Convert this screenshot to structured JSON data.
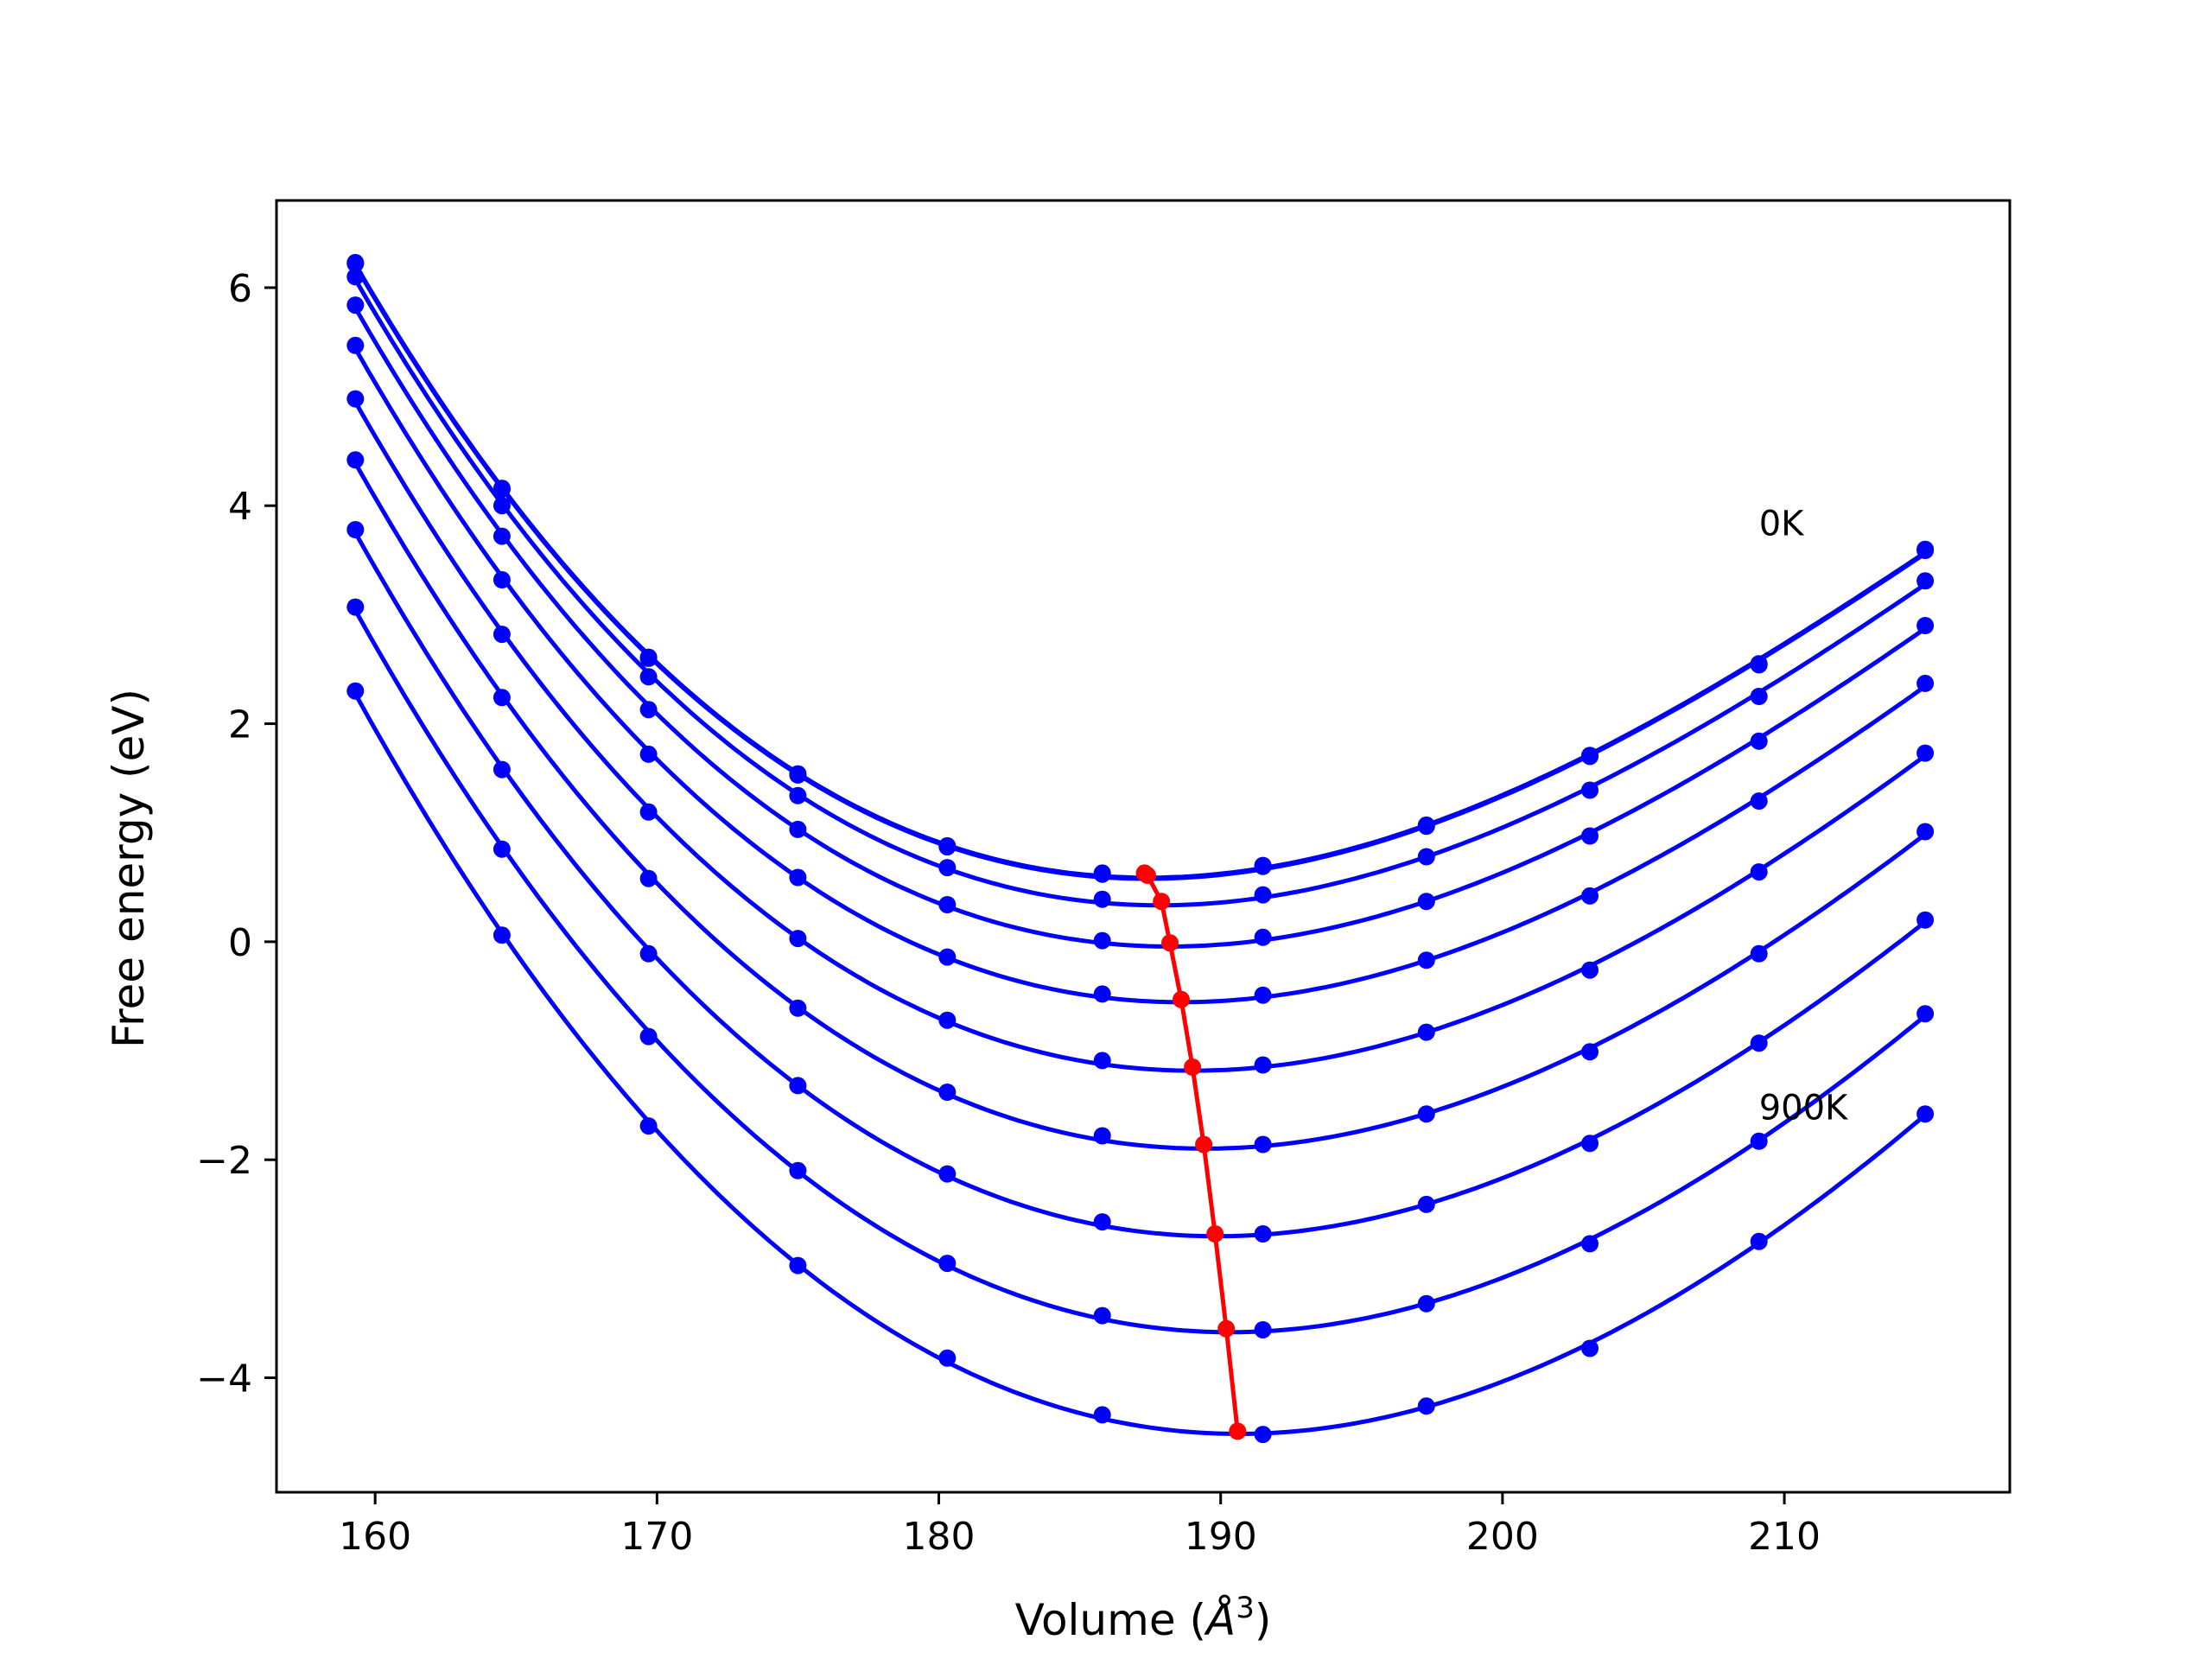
{
  "chart_data": {
    "type": "line",
    "title": "",
    "xlabel_prefix": "Volume (",
    "xlabel_symbol": "Å",
    "xlabel_exponent": "3",
    "xlabel_suffix": ")",
    "ylabel": "Free energy (eV)",
    "xlim": [
      156.5,
      218
    ],
    "ylim": [
      -5.05,
      6.8
    ],
    "xticks": [
      160,
      170,
      180,
      190,
      200,
      210
    ],
    "yticks": [
      -4,
      -2,
      0,
      2,
      4,
      6
    ],
    "xtick_labels": [
      "160",
      "170",
      "180",
      "190",
      "200",
      "210"
    ],
    "ytick_labels": [
      "−4",
      "−2",
      "0",
      "2",
      "4",
      "6"
    ],
    "grid": false,
    "legend": "none",
    "annotations": [
      {
        "text": "0K",
        "x": 209.1,
        "y": 3.73
      },
      {
        "text": "900K",
        "x": 209.1,
        "y": -1.63
      }
    ],
    "colors": {
      "curves": "#0000ff",
      "minimum_path": "#ff0000"
    },
    "x_points": [
      159.3,
      164.5,
      169.7,
      175.0,
      180.3,
      185.8,
      191.5,
      197.3,
      203.1,
      209.1,
      215.0
    ],
    "series": [
      {
        "temperature_K": 0,
        "values": [
          6.23,
          4.16,
          2.61,
          1.54,
          0.88,
          0.63,
          0.7,
          1.07,
          1.71,
          2.55,
          3.6
        ]
      },
      {
        "temperature_K": 100,
        "values": [
          6.22,
          4.15,
          2.6,
          1.53,
          0.87,
          0.62,
          0.69,
          1.06,
          1.7,
          2.54,
          3.59
        ]
      },
      {
        "temperature_K": 200,
        "values": [
          6.1,
          4.0,
          2.43,
          1.34,
          0.68,
          0.39,
          0.43,
          0.78,
          1.39,
          2.25,
          3.31
        ]
      },
      {
        "temperature_K": 300,
        "values": [
          5.84,
          3.72,
          2.13,
          1.03,
          0.34,
          0.01,
          0.04,
          0.37,
          0.97,
          1.84,
          2.9
        ]
      },
      {
        "temperature_K": 400,
        "values": [
          5.47,
          3.32,
          1.72,
          0.59,
          -0.14,
          -0.48,
          -0.49,
          -0.17,
          0.42,
          1.29,
          2.37
        ]
      },
      {
        "temperature_K": 500,
        "values": [
          4.98,
          2.82,
          1.19,
          0.03,
          -0.72,
          -1.09,
          -1.13,
          -0.83,
          -0.26,
          0.64,
          1.73
        ]
      },
      {
        "temperature_K": 600,
        "values": [
          4.42,
          2.24,
          0.58,
          -0.61,
          -1.38,
          -1.78,
          -1.86,
          -1.58,
          -1.01,
          -0.11,
          1.01
        ]
      },
      {
        "temperature_K": 700,
        "values": [
          3.78,
          1.58,
          -0.11,
          -1.32,
          -2.13,
          -2.57,
          -2.68,
          -2.41,
          -1.85,
          -0.93,
          0.2
        ]
      },
      {
        "temperature_K": 800,
        "values": [
          3.07,
          0.85,
          -0.87,
          -2.1,
          -2.95,
          -3.43,
          -3.56,
          -3.32,
          -2.77,
          -1.83,
          -0.66
        ]
      },
      {
        "temperature_K": 900,
        "values": [
          2.3,
          0.06,
          -1.69,
          -2.97,
          -3.82,
          -4.34,
          -4.52,
          -4.26,
          -3.73,
          -2.75,
          -1.58
        ]
      }
    ],
    "minimum_path": {
      "x": [
        187.3,
        187.4,
        187.9,
        188.2,
        188.6,
        189.0,
        189.4,
        189.8,
        190.2,
        190.6
      ],
      "y": [
        0.63,
        0.61,
        0.37,
        -0.01,
        -0.53,
        -1.15,
        -1.86,
        -2.68,
        -3.55,
        -4.49
      ]
    }
  }
}
